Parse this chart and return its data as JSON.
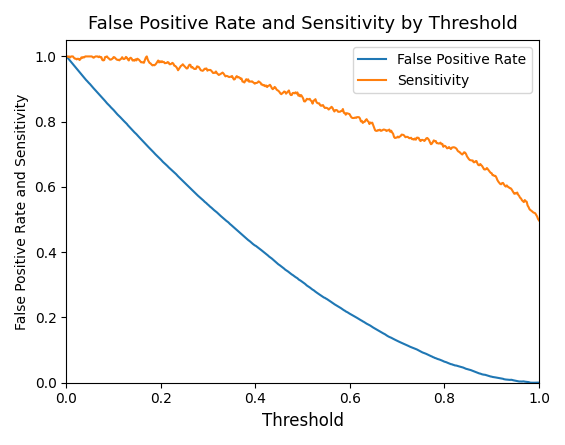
{
  "title": "False Positive Rate and Sensitivity by Threshold",
  "xlabel": "Threshold",
  "ylabel": "False Positive Rate and Sensitivity",
  "fpr_color": "#1f77b4",
  "sensitivity_color": "#ff7f0e",
  "fpr_label": "False Positive Rate",
  "sensitivity_label": "Sensitivity",
  "xlim": [
    0.0,
    1.0
  ],
  "ylim": [
    0.0,
    1.05
  ],
  "legend_loc": "upper right",
  "n_points": 500,
  "background_color": "#ffffff"
}
